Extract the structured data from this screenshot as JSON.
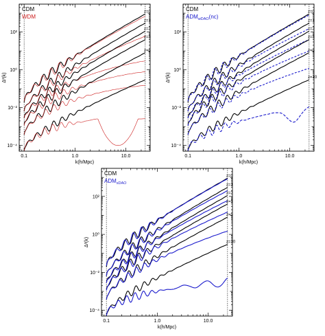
{
  "colors": {
    "reference": "#000000",
    "wdm": "#cc1a1a",
    "adm": "#1a1acc"
  },
  "chart_data": [
    {
      "type": "line",
      "xlabel": "k(h/Mpc)",
      "ylabel": "Δ²(k)",
      "xscale": "log",
      "yscale": "log",
      "xlim": [
        0.08,
        30
      ],
      "ylim": [
        5e-05,
        3000
      ],
      "xticks": [
        "0.1",
        "1.0",
        "10.0"
      ],
      "yticks": [
        "10⁻⁴",
        "10⁻²",
        "10⁰",
        "10²"
      ],
      "vlines": [
        0.1,
        24
      ],
      "legend": [
        {
          "label": "CDM",
          "color": "#000000"
        },
        {
          "label": "WDM",
          "color": "#cc1a1a"
        }
      ],
      "redshift_labels": [
        {
          "text": "z=0",
          "y": 900
        },
        {
          "text": "z=1",
          "y": 300
        },
        {
          "text": "z=2",
          "y": 110
        },
        {
          "text": "z=3",
          "y": 40
        },
        {
          "text": "z=5",
          "y": 8
        }
      ],
      "series": [
        {
          "z": 0,
          "reference": {
            "y01": 0.02,
            "y24": 900
          },
          "model": {
            "y01": 0.02,
            "y24": 700,
            "shape": "suppress"
          }
        },
        {
          "z": 1,
          "reference": {
            "y01": 0.006,
            "y24": 300
          },
          "model": {
            "y01": 0.006,
            "y24": 60,
            "shape": "suppress"
          }
        },
        {
          "z": 2,
          "reference": {
            "y01": 0.0025,
            "y24": 110
          },
          "model": {
            "y01": 0.0025,
            "y24": 3,
            "shape": "suppress"
          }
        },
        {
          "z": 3,
          "reference": {
            "y01": 0.0012,
            "y24": 40
          },
          "model": {
            "y01": 0.0012,
            "y24": 0.8,
            "shape": "suppress"
          }
        },
        {
          "z": 5,
          "reference": {
            "y01": 0.0004,
            "y24": 8
          },
          "model": {
            "y01": 0.0004,
            "y24": 0.15,
            "shape": "suppress"
          }
        },
        {
          "z": 10,
          "reference": {
            "y01": 6e-05,
            "y24": 0.3
          },
          "model": {
            "y01": 6e-05,
            "y24": 0.0002,
            "shape": "trough",
            "kmin": 7,
            "ymin": 0.0001
          }
        }
      ]
    },
    {
      "type": "line",
      "xlabel": "k(h/Mpc)",
      "ylabel": "Δ²(k)",
      "xscale": "log",
      "yscale": "log",
      "xlim": [
        0.08,
        30
      ],
      "ylim": [
        5e-05,
        3000
      ],
      "xticks": [
        "0.1",
        "1.0",
        "10.0"
      ],
      "yticks": [
        "10⁻⁴",
        "10⁻²",
        "10⁰",
        "10²"
      ],
      "vlines": [
        0.1,
        24
      ],
      "legend": [
        {
          "label": "CDM",
          "color": "#000000"
        },
        {
          "label": "ADMweakDAO(nc)",
          "color": "#1a1acc",
          "main": "ADM",
          "sub": "wDAO",
          "tail": "(nc)"
        }
      ],
      "redshift_labels": [
        {
          "text": "z=0",
          "y": 900
        },
        {
          "text": "z=1",
          "y": 300
        },
        {
          "text": "z=2",
          "y": 110
        },
        {
          "text": "z=3",
          "y": 40
        },
        {
          "text": "z=5",
          "y": 8
        },
        {
          "text": "z=10",
          "y": 0.3
        }
      ],
      "series": [
        {
          "z": 0,
          "reference": {
            "y01": 0.02,
            "y24": 900
          },
          "model": {
            "y01": 0.02,
            "y24": 800,
            "shape": "suppress"
          }
        },
        {
          "z": 1,
          "reference": {
            "y01": 0.006,
            "y24": 300
          },
          "model": {
            "y01": 0.006,
            "y24": 150,
            "shape": "suppress"
          }
        },
        {
          "z": 2,
          "reference": {
            "y01": 0.0025,
            "y24": 110
          },
          "model": {
            "y01": 0.0025,
            "y24": 40,
            "shape": "suppress"
          }
        },
        {
          "z": 3,
          "reference": {
            "y01": 0.0012,
            "y24": 40
          },
          "model": {
            "y01": 0.0012,
            "y24": 10,
            "shape": "suppress"
          }
        },
        {
          "z": 5,
          "reference": {
            "y01": 0.0004,
            "y24": 8
          },
          "model": {
            "y01": 0.0004,
            "y24": 1.2,
            "shape": "suppress"
          }
        },
        {
          "z": 10,
          "reference": {
            "y01": 6e-05,
            "y24": 0.3
          },
          "model": {
            "y01": 6e-05,
            "y24": 0.012,
            "shape": "dip",
            "kmin": 12,
            "ymin": 0.0015
          }
        }
      ]
    },
    {
      "type": "line",
      "xlabel": "k(h/Mpc)",
      "ylabel": "Δ²(k)",
      "xscale": "log",
      "yscale": "log",
      "xlim": [
        0.08,
        30
      ],
      "ylim": [
        5e-05,
        3000
      ],
      "xticks": [
        "0.1",
        "1.0",
        "10.0"
      ],
      "yticks": [
        "10⁻⁴",
        "10⁻²",
        "10⁰",
        "10²"
      ],
      "vlines": [
        0.1,
        24
      ],
      "legend": [
        {
          "label": "CDM",
          "color": "#000000"
        },
        {
          "label": "ADMsDAO",
          "color": "#1a1acc",
          "main": "ADM",
          "sub": "sDAO",
          "tail": ""
        }
      ],
      "redshift_labels": [
        {
          "text": "z=0",
          "y": 900
        },
        {
          "text": "z=1",
          "y": 300
        },
        {
          "text": "z=2",
          "y": 110
        },
        {
          "text": "z=3",
          "y": 40
        },
        {
          "text": "z=5",
          "y": 8
        },
        {
          "text": "z=10",
          "y": 0.3
        }
      ],
      "series": [
        {
          "z": 0,
          "reference": {
            "y01": 0.02,
            "y24": 900
          },
          "model": {
            "y01": 0.02,
            "y24": 850,
            "shape": "suppress"
          }
        },
        {
          "z": 1,
          "reference": {
            "y01": 0.006,
            "y24": 300
          },
          "model": {
            "y01": 0.006,
            "y24": 200,
            "shape": "suppress"
          }
        },
        {
          "z": 2,
          "reference": {
            "y01": 0.0025,
            "y24": 110
          },
          "model": {
            "y01": 0.0025,
            "y24": 60,
            "shape": "suppress"
          }
        },
        {
          "z": 3,
          "reference": {
            "y01": 0.0012,
            "y24": 40
          },
          "model": {
            "y01": 0.0012,
            "y24": 15,
            "shape": "suppress"
          }
        },
        {
          "z": 5,
          "reference": {
            "y01": 0.0004,
            "y24": 8
          },
          "model": {
            "y01": 0.0004,
            "y24": 1.5,
            "shape": "suppress"
          }
        },
        {
          "z": 10,
          "reference": {
            "y01": 6e-05,
            "y24": 0.3
          },
          "model": {
            "y01": 6e-05,
            "y24": 0.003,
            "shape": "osc",
            "kmin": 4,
            "ymin": 0.001
          }
        }
      ]
    }
  ]
}
